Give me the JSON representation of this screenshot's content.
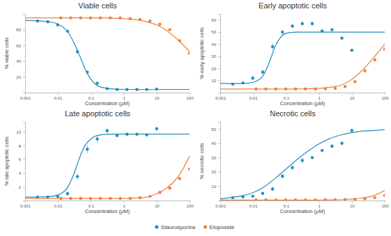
{
  "chart_data": [
    {
      "type": "scatter",
      "title": "Viable cells",
      "x_label": "Concentration (µM)",
      "y_label": "% viable cells",
      "log": "x",
      "grid": false,
      "legend": "bottom",
      "xlim": [
        0.001,
        100
      ],
      "xticks": [
        0.001,
        0.01,
        0.1,
        1,
        10,
        100
      ],
      "ylim": [
        0,
        100
      ],
      "yticks": [
        20,
        40,
        60,
        80
      ],
      "series": [
        {
          "name": "Staurosporine",
          "color": "#1f8dbd",
          "marker": "circle",
          "x": [
            0.0024,
            0.0049,
            0.0098,
            0.0195,
            0.039,
            0.078,
            0.156,
            0.3125,
            0.625,
            1.25,
            2.5,
            5,
            10
          ],
          "values": [
            91,
            90,
            86,
            78,
            52,
            26,
            12,
            5,
            4,
            4,
            4,
            4,
            4.5
          ],
          "errors": [
            1,
            1,
            1.5,
            2,
            2,
            1.5,
            1,
            0.5,
            0.5,
            0.5,
            0.5,
            0.5,
            0.5
          ]
        },
        {
          "name": "Etoposide",
          "color": "#f07f3c",
          "marker": "circle",
          "x": [
            0.0122,
            0.0244,
            0.0488,
            0.0977,
            0.195,
            0.39,
            0.78,
            1.56,
            3.13,
            6.25,
            12.5,
            25,
            50,
            100
          ],
          "values": [
            95,
            95,
            95,
            95,
            95,
            95,
            95,
            94,
            93,
            91,
            87,
            80,
            66,
            50
          ],
          "errors": [
            0.5,
            0.5,
            0.5,
            0.5,
            0.5,
            0.5,
            0.5,
            0.5,
            0.5,
            0.5,
            0.8,
            1,
            1,
            1
          ]
        },
        {
          "type": "line",
          "color": "#1f8dbd",
          "line_style": "solid",
          "x": [
            0.001,
            0.002,
            0.005,
            0.01,
            0.02,
            0.03,
            0.05,
            0.07,
            0.1,
            0.2,
            0.5,
            1,
            2,
            5,
            10,
            20,
            50,
            100
          ],
          "values": [
            92,
            91.5,
            90,
            87,
            77,
            64,
            43,
            28,
            17,
            7,
            4.5,
            4,
            4,
            4,
            4,
            4,
            4,
            4
          ]
        },
        {
          "type": "line",
          "color": "#f07f3c",
          "line_style": "solid",
          "x": [
            0.001,
            0.002,
            0.005,
            0.01,
            0.02,
            0.03,
            0.05,
            0.07,
            0.1,
            0.2,
            0.5,
            1,
            2,
            5,
            10,
            20,
            50,
            100
          ],
          "values": [
            95,
            95,
            95,
            95,
            95,
            95,
            95,
            95,
            95,
            95,
            94.5,
            94,
            93,
            90,
            86,
            79,
            65,
            52
          ]
        }
      ]
    },
    {
      "type": "scatter",
      "title": "Early apoptotic cells",
      "x_label": "Concentration (µM)",
      "y_label": "% early apoptotic cells",
      "log": "x",
      "grid": false,
      "xlim": [
        0.001,
        100
      ],
      "xticks": [
        0.001,
        0.01,
        0.1,
        1,
        10,
        100
      ],
      "ylim": [
        0,
        65
      ],
      "yticks": [
        10,
        20,
        30,
        40,
        50,
        60
      ],
      "series": [
        {
          "color": "#1f8dbd",
          "marker": "circle",
          "x": [
            0.0024,
            0.0049,
            0.0098,
            0.0195,
            0.039,
            0.078,
            0.156,
            0.3125,
            0.625,
            1.25,
            2.5,
            5,
            10
          ],
          "values": [
            7,
            8,
            12,
            17,
            38,
            50,
            55,
            57,
            57,
            51,
            52,
            45,
            35
          ],
          "errors": [
            0.5,
            0.5,
            2,
            2,
            3,
            2,
            1.5,
            2,
            2,
            0.5,
            0.5,
            1,
            0.5
          ]
        },
        {
          "color": "#f07f3c",
          "marker": "circle",
          "x": [
            0.0122,
            0.0244,
            0.0488,
            0.0977,
            0.195,
            0.39,
            0.78,
            1.56,
            3.13,
            6.25,
            12.5,
            25,
            50,
            100
          ],
          "values": [
            3,
            3,
            3,
            3,
            3,
            3,
            3,
            3.2,
            3.5,
            5,
            9,
            18,
            27,
            36
          ],
          "errors": [
            0.5,
            0.5,
            0.5,
            0.5,
            0.5,
            0.5,
            0.5,
            0.5,
            0.5,
            0.5,
            0.5,
            0.8,
            1,
            1
          ]
        },
        {
          "type": "line",
          "color": "#1f8dbd",
          "line_style": "solid",
          "x": [
            0.001,
            0.002,
            0.005,
            0.01,
            0.02,
            0.03,
            0.05,
            0.07,
            0.1,
            0.2,
            0.5,
            1,
            2,
            5,
            10,
            20,
            50,
            100
          ],
          "values": [
            7.5,
            7.5,
            7.6,
            8.5,
            14,
            24,
            40,
            46,
            49,
            50,
            50,
            50,
            50,
            50,
            50,
            50,
            50,
            50
          ]
        },
        {
          "type": "line",
          "color": "#f07f3c",
          "line_style": "solid",
          "x": [
            0.001,
            0.002,
            0.005,
            0.01,
            0.02,
            0.03,
            0.05,
            0.07,
            0.1,
            0.2,
            0.5,
            1,
            2,
            5,
            10,
            20,
            50,
            100
          ],
          "values": [
            3,
            3,
            3,
            3,
            3,
            3,
            3,
            3,
            3,
            3,
            3.2,
            3.5,
            4.2,
            6.5,
            11,
            18,
            30,
            40
          ]
        }
      ]
    },
    {
      "type": "scatter",
      "title": "Late apoptotic cells",
      "x_label": "Concentration (µM)",
      "y_label": "% late apoptotic cells",
      "log": "x",
      "grid": false,
      "xlim": [
        0.001,
        100
      ],
      "xticks": [
        0.001,
        0.01,
        0.1,
        1,
        10,
        100
      ],
      "ylim": [
        0,
        11.5
      ],
      "yticks": [
        2,
        4,
        6,
        8,
        10
      ],
      "series": [
        {
          "color": "#1f8dbd",
          "marker": "circle",
          "x": [
            0.0024,
            0.0049,
            0.0098,
            0.0195,
            0.039,
            0.078,
            0.156,
            0.3125,
            0.625,
            1.25,
            2.5,
            5,
            10
          ],
          "values": [
            0.5,
            0.5,
            0.6,
            1,
            3.5,
            7.5,
            9,
            10.2,
            9.5,
            9.7,
            9.7,
            9.6,
            10.5
          ],
          "errors": [
            0.1,
            0.1,
            0.2,
            0.3,
            0.5,
            0.6,
            0.6,
            0.5,
            0.3,
            0.2,
            0.2,
            0.2,
            0.4
          ]
        },
        {
          "color": "#f07f3c",
          "marker": "circle",
          "x": [
            0.0122,
            0.0244,
            0.0488,
            0.0977,
            0.195,
            0.39,
            0.78,
            1.56,
            3.13,
            6.25,
            12.5,
            25,
            50,
            100
          ],
          "values": [
            0.3,
            0.3,
            0.3,
            0.3,
            0.3,
            0.3,
            0.3,
            0.3,
            0.4,
            0.6,
            1.2,
            1.8,
            3.2,
            4.6
          ],
          "errors": [
            0.1,
            0.1,
            0.1,
            0.1,
            0.1,
            0.1,
            0.1,
            0.1,
            0.1,
            0.1,
            0.1,
            0.1,
            0.2,
            0.2
          ]
        },
        {
          "type": "line",
          "color": "#1f8dbd",
          "line_style": "solid",
          "x": [
            0.001,
            0.002,
            0.005,
            0.01,
            0.02,
            0.03,
            0.05,
            0.07,
            0.1,
            0.2,
            0.5,
            1,
            2,
            5,
            10,
            20,
            50,
            100
          ],
          "values": [
            0.5,
            0.5,
            0.55,
            0.8,
            2,
            3.8,
            6.8,
            8.2,
            9,
            9.6,
            9.7,
            9.7,
            9.7,
            9.7,
            9.7,
            9.7,
            9.7,
            9.7
          ]
        },
        {
          "type": "line",
          "color": "#f07f3c",
          "line_style": "solid",
          "x": [
            0.001,
            0.002,
            0.005,
            0.01,
            0.02,
            0.03,
            0.05,
            0.07,
            0.1,
            0.2,
            0.5,
            1,
            2,
            5,
            10,
            20,
            50,
            100
          ],
          "values": [
            0.3,
            0.3,
            0.3,
            0.3,
            0.3,
            0.3,
            0.3,
            0.3,
            0.3,
            0.3,
            0.3,
            0.3,
            0.35,
            0.5,
            1,
            1.8,
            3.8,
            6.5
          ]
        }
      ]
    },
    {
      "type": "scatter",
      "title": "Necrotic cells",
      "x_label": "Concentration (µM)",
      "y_label": "% necrotic cells",
      "log": "x",
      "grid": false,
      "xlim": [
        0.001,
        100
      ],
      "xticks": [
        0.001,
        0.01,
        0.1,
        1,
        10,
        100
      ],
      "ylim": [
        0,
        55
      ],
      "yticks": [
        10,
        20,
        30,
        40,
        50
      ],
      "series": [
        {
          "color": "#1f8dbd",
          "marker": "circle",
          "x": [
            0.0024,
            0.0049,
            0.0098,
            0.0195,
            0.039,
            0.078,
            0.156,
            0.3125,
            0.625,
            1.25,
            2.5,
            5,
            10
          ],
          "values": [
            2,
            2.5,
            3,
            5,
            8,
            17,
            23,
            28,
            30,
            35,
            38,
            40,
            49
          ],
          "errors": [
            0.5,
            0.5,
            0.5,
            1,
            1.5,
            2,
            2,
            2,
            1,
            1,
            1.5,
            1.5,
            1.5
          ]
        },
        {
          "color": "#f07f3c",
          "marker": "circle",
          "x": [
            0.0122,
            0.0244,
            0.0488,
            0.0977,
            0.195,
            0.39,
            0.78,
            1.56,
            3.13,
            6.25,
            12.5,
            25,
            50,
            100
          ],
          "values": [
            0.4,
            0.4,
            0.4,
            0.4,
            0.4,
            0.4,
            0.4,
            0.5,
            0.5,
            0.6,
            0.8,
            1.2,
            2,
            3.5
          ],
          "errors": [
            0.2,
            0.2,
            0.2,
            0.2,
            0.2,
            0.2,
            0.2,
            0.2,
            0.2,
            0.2,
            0.2,
            0.2,
            0.2,
            0.2
          ]
        },
        {
          "type": "line",
          "color": "#1f8dbd",
          "line_style": "solid",
          "x": [
            0.001,
            0.002,
            0.005,
            0.01,
            0.02,
            0.03,
            0.05,
            0.07,
            0.1,
            0.2,
            0.5,
            1,
            2,
            5,
            10,
            20,
            50,
            100
          ],
          "values": [
            1,
            2,
            3.5,
            5.5,
            9,
            12,
            16,
            19,
            22,
            28,
            35,
            39.5,
            43,
            46,
            47.5,
            48.5,
            49,
            49.5
          ]
        },
        {
          "type": "line",
          "color": "#f07f3c",
          "line_style": "solid",
          "x": [
            0.001,
            0.002,
            0.005,
            0.01,
            0.02,
            0.03,
            0.05,
            0.07,
            0.1,
            0.2,
            0.5,
            1,
            2,
            5,
            10,
            20,
            50,
            100
          ],
          "values": [
            0.3,
            0.3,
            0.3,
            0.3,
            0.3,
            0.3,
            0.3,
            0.3,
            0.3,
            0.3,
            0.3,
            0.35,
            0.4,
            0.6,
            1,
            1.7,
            3.6,
            7
          ]
        }
      ]
    }
  ]
}
